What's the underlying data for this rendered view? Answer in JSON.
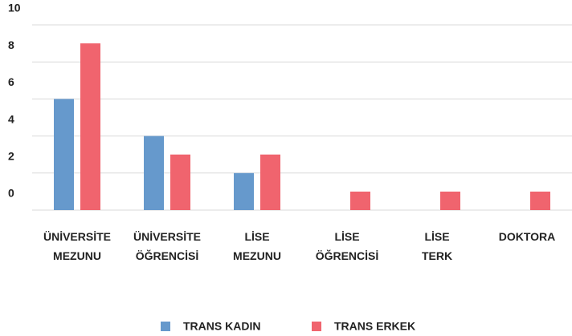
{
  "chart_data": {
    "type": "bar",
    "categories": [
      [
        "ÜNİVERSİTE",
        "MEZUNU"
      ],
      [
        "ÜNİVERSİTE",
        "ÖĞRENCİSİ"
      ],
      [
        "LİSE",
        "MEZUNU"
      ],
      [
        "LİSE",
        "ÖĞRENCİSİ"
      ],
      [
        "LİSE",
        "TERK"
      ],
      [
        "DOKTORA"
      ]
    ],
    "series": [
      {
        "name": "TRANS KADIN",
        "color": "#6699cc",
        "values": [
          6,
          4,
          2,
          0,
          0,
          0
        ]
      },
      {
        "name": "TRANS ERKEK",
        "color": "#f0646e",
        "values": [
          9,
          3,
          3,
          1,
          1,
          1
        ]
      }
    ],
    "ylim": [
      0,
      10
    ],
    "yticks": [
      0,
      2,
      4,
      6,
      8,
      10
    ],
    "grid": true,
    "legend": "bottom"
  }
}
